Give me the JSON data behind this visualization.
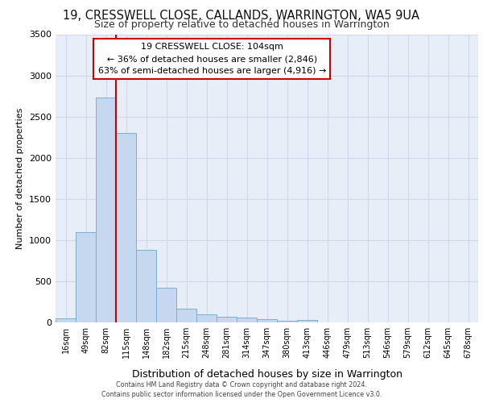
{
  "title": "19, CRESSWELL CLOSE, CALLANDS, WARRINGTON, WA5 9UA",
  "subtitle": "Size of property relative to detached houses in Warrington",
  "xlabel": "Distribution of detached houses by size in Warrington",
  "ylabel": "Number of detached properties",
  "bin_labels": [
    "16sqm",
    "49sqm",
    "82sqm",
    "115sqm",
    "148sqm",
    "182sqm",
    "215sqm",
    "248sqm",
    "281sqm",
    "314sqm",
    "347sqm",
    "380sqm",
    "413sqm",
    "446sqm",
    "479sqm",
    "513sqm",
    "546sqm",
    "579sqm",
    "612sqm",
    "645sqm",
    "678sqm"
  ],
  "bar_values": [
    50,
    1100,
    2730,
    2300,
    880,
    420,
    170,
    100,
    65,
    55,
    35,
    15,
    25,
    0,
    0,
    0,
    0,
    0,
    0,
    0,
    0
  ],
  "bar_color": "#c5d8f0",
  "bar_edge_color": "#7bafd4",
  "grid_color": "#d0d8ea",
  "background_color": "#e8eef8",
  "vline_color": "#cc0000",
  "annotation_text": "19 CRESSWELL CLOSE: 104sqm\n← 36% of detached houses are smaller (2,846)\n63% of semi-detached houses are larger (4,916) →",
  "annotation_box_color": "#cc0000",
  "ylim": [
    0,
    3500
  ],
  "yticks": [
    0,
    500,
    1000,
    1500,
    2000,
    2500,
    3000,
    3500
  ],
  "footer_line1": "Contains HM Land Registry data © Crown copyright and database right 2024.",
  "footer_line2": "Contains public sector information licensed under the Open Government Licence v3.0."
}
